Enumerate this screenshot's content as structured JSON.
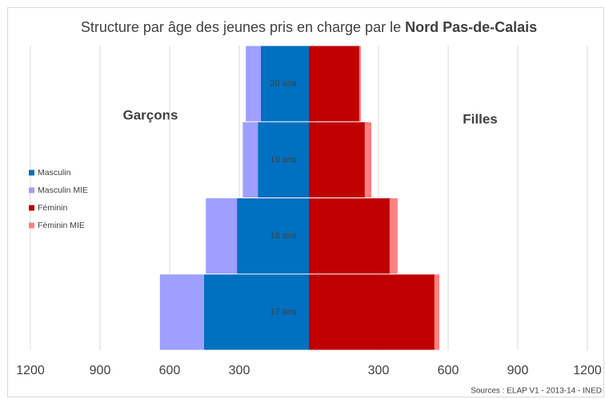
{
  "chart_data": {
    "type": "pyramid",
    "title": [
      "Structure par âge des jeunes pris en charge par le ",
      "Nord Pas-de-Calais"
    ],
    "left_label": "Garçons",
    "right_label": "Filles",
    "source": "Sources : ELAP V1 - 2013-14 - INED",
    "categories": [
      "17 ans",
      "18 ans",
      "19 ans",
      "20 ans"
    ],
    "series": [
      {
        "name": "Masculin",
        "color": "#0070c0",
        "values": [
          -452,
          -310,
          -220,
          -207
        ]
      },
      {
        "name": "Masculin MIE",
        "color": "#9f9fff",
        "values": [
          -190,
          -134,
          -65,
          -65
        ]
      },
      {
        "name": "Féminin",
        "color": "#c00000",
        "values": [
          541,
          348,
          241,
          217
        ]
      },
      {
        "name": "Féminin MIE",
        "color": "#ff8080",
        "values": [
          21,
          34,
          28,
          7
        ]
      }
    ],
    "xlim": [
      -1200,
      1200
    ],
    "xticks": [
      {
        "value": -1200,
        "label": "1200"
      },
      {
        "value": -900,
        "label": "900"
      },
      {
        "value": -600,
        "label": "600"
      },
      {
        "value": -300,
        "label": "300"
      },
      300,
      600,
      900,
      1200
    ],
    "grid": true
  }
}
